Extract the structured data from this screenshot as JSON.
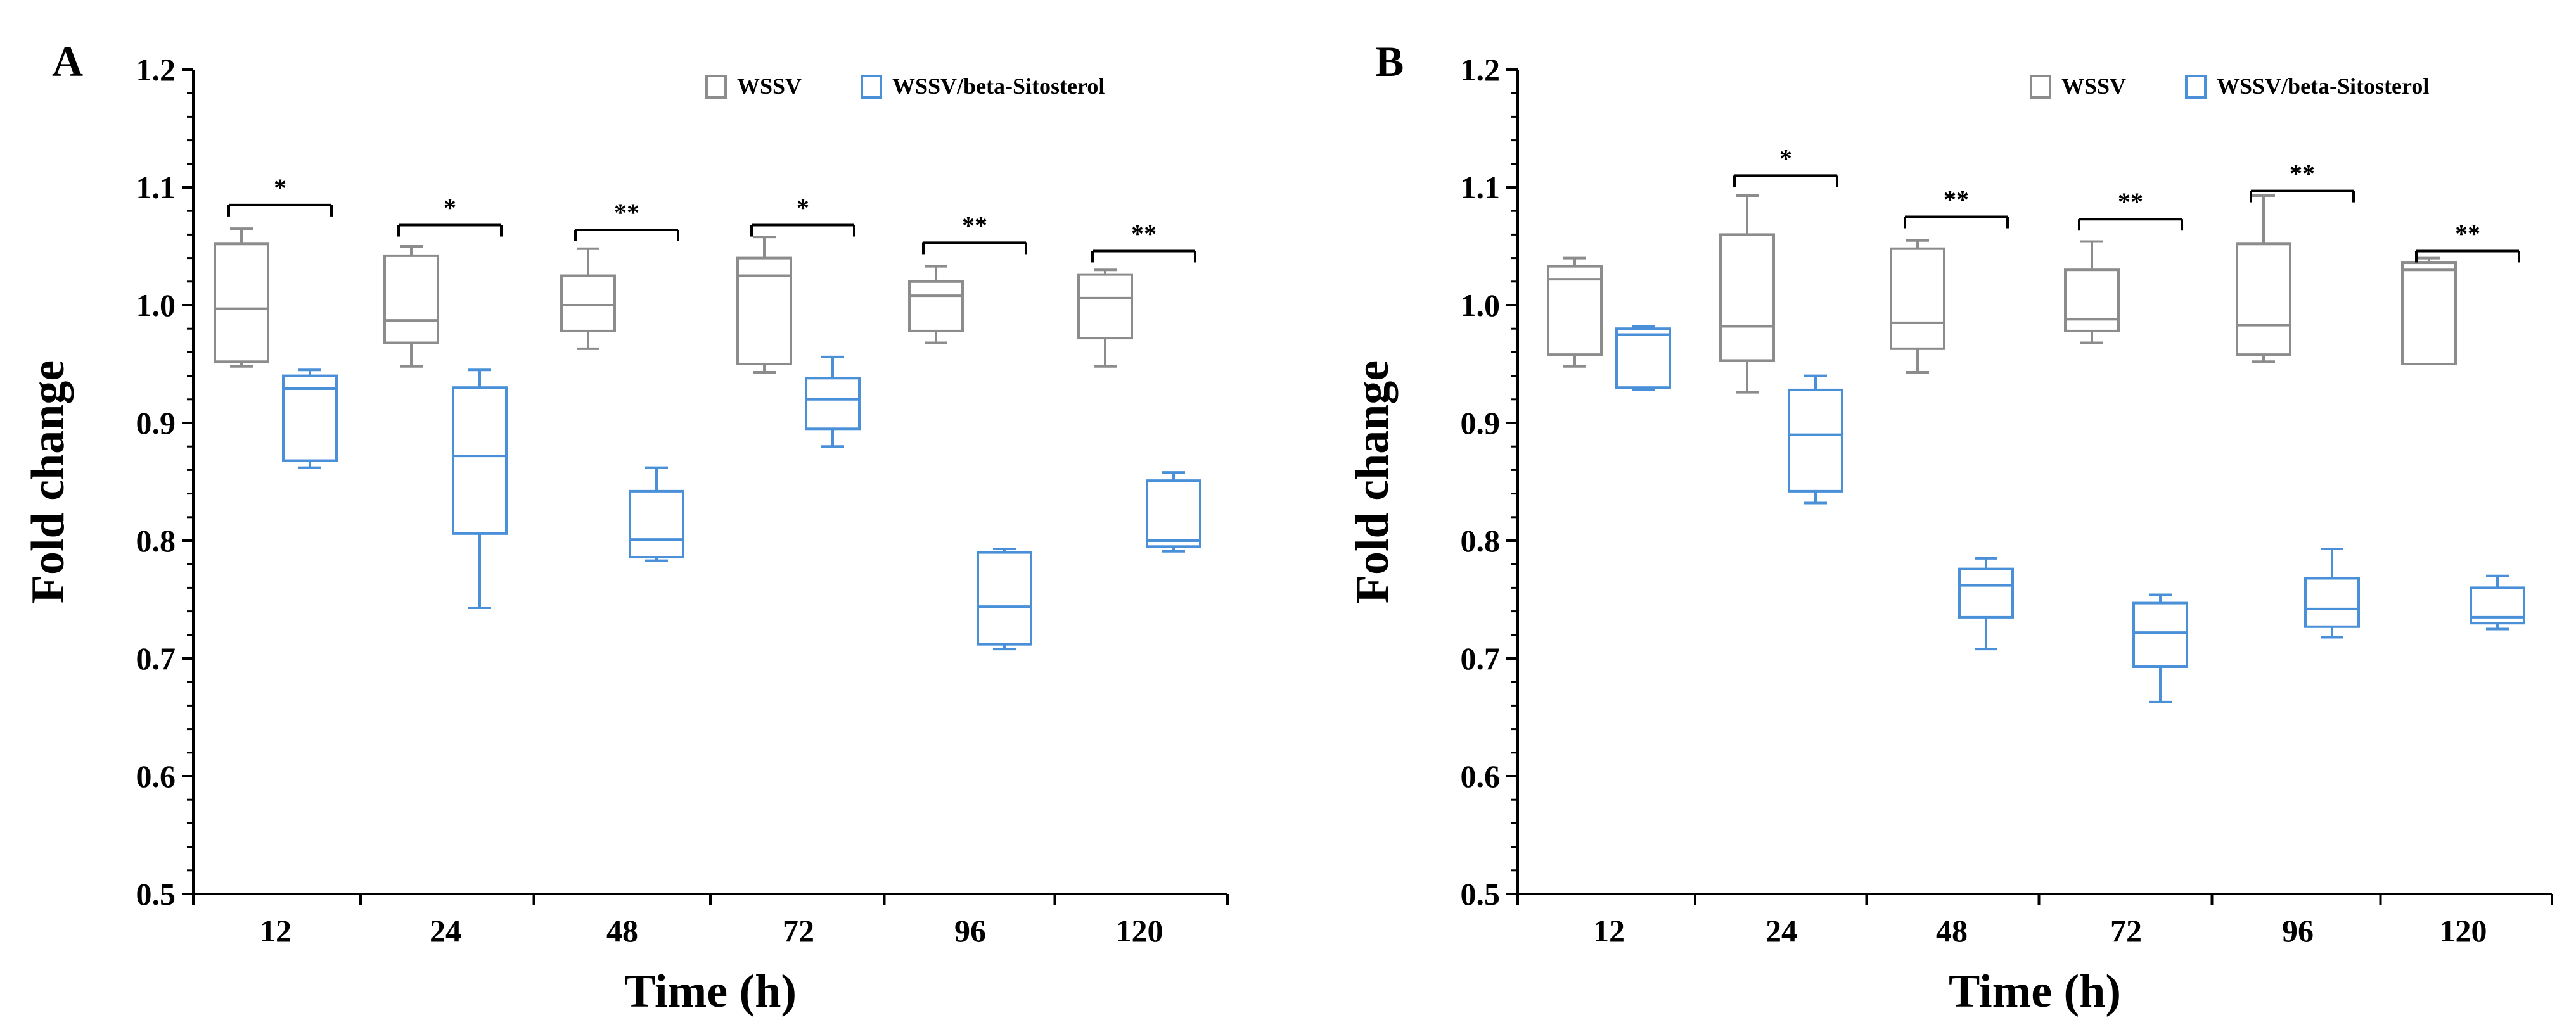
{
  "colors": {
    "WSSV": "#8c8c8c",
    "WSSV/beta-Sitosterol": "#4a90d9",
    "axis": "#000000"
  },
  "chart_data": [
    {
      "type": "box",
      "panel": "A",
      "xlabel": "Time (h)",
      "ylabel": "Fold change",
      "categories": [
        "12",
        "24",
        "48",
        "72",
        "96",
        "120"
      ],
      "ylim": [
        0.5,
        1.2
      ],
      "yticks": [
        "0.5",
        "0.6",
        "0.7",
        "0.8",
        "0.9",
        "1.0",
        "1.1",
        "1.2"
      ],
      "legend": {
        "placement": "top-right",
        "entries": [
          "WSSV",
          "WSSV/beta-Sitosterol"
        ]
      },
      "series": [
        {
          "name": "WSSV",
          "boxes": [
            {
              "min": 0.948,
              "q1": 0.952,
              "median": 0.997,
              "q3": 1.052,
              "max": 1.065
            },
            {
              "min": 0.948,
              "q1": 0.968,
              "median": 0.987,
              "q3": 1.042,
              "max": 1.05
            },
            {
              "min": 0.963,
              "q1": 0.978,
              "median": 1.0,
              "q3": 1.025,
              "max": 1.048
            },
            {
              "min": 0.943,
              "q1": 0.95,
              "median": 1.025,
              "q3": 1.04,
              "max": 1.058
            },
            {
              "min": 0.968,
              "q1": 0.978,
              "median": 1.008,
              "q3": 1.02,
              "max": 1.033
            },
            {
              "min": 0.948,
              "q1": 0.972,
              "median": 1.006,
              "q3": 1.026,
              "max": 1.03
            }
          ]
        },
        {
          "name": "WSSV/beta-Sitosterol",
          "boxes": [
            {
              "min": 0.862,
              "q1": 0.868,
              "median": 0.929,
              "q3": 0.94,
              "max": 0.945
            },
            {
              "min": 0.743,
              "q1": 0.806,
              "median": 0.872,
              "q3": 0.93,
              "max": 0.945
            },
            {
              "min": 0.783,
              "q1": 0.786,
              "median": 0.801,
              "q3": 0.842,
              "max": 0.862
            },
            {
              "min": 0.88,
              "q1": 0.895,
              "median": 0.92,
              "q3": 0.938,
              "max": 0.956
            },
            {
              "min": 0.708,
              "q1": 0.712,
              "median": 0.744,
              "q3": 0.79,
              "max": 0.793
            },
            {
              "min": 0.791,
              "q1": 0.795,
              "median": 0.8,
              "q3": 0.851,
              "max": 0.858
            }
          ]
        }
      ],
      "significance": [
        "*",
        "*",
        "**",
        "*",
        "**",
        "**"
      ],
      "sig_levels": [
        1.085,
        1.068,
        1.064,
        1.068,
        1.053,
        1.046
      ]
    },
    {
      "type": "box",
      "panel": "B",
      "xlabel": "Time (h)",
      "ylabel": "Fold change",
      "categories": [
        "12",
        "24",
        "48",
        "72",
        "96",
        "120"
      ],
      "ylim": [
        0.5,
        1.2
      ],
      "yticks": [
        "0.5",
        "0.6",
        "0.7",
        "0.8",
        "0.9",
        "1.0",
        "1.1",
        "1.2"
      ],
      "legend": {
        "placement": "top-right",
        "entries": [
          "WSSV",
          "WSSV/beta-Sitosterol"
        ]
      },
      "series": [
        {
          "name": "WSSV",
          "boxes": [
            {
              "min": 0.948,
              "q1": 0.958,
              "median": 1.022,
              "q3": 1.033,
              "max": 1.04
            },
            {
              "min": 0.926,
              "q1": 0.953,
              "median": 0.982,
              "q3": 1.06,
              "max": 1.093
            },
            {
              "min": 0.943,
              "q1": 0.963,
              "median": 0.985,
              "q3": 1.048,
              "max": 1.055
            },
            {
              "min": 0.968,
              "q1": 0.978,
              "median": 0.988,
              "q3": 1.03,
              "max": 1.054
            },
            {
              "min": 0.952,
              "q1": 0.958,
              "median": 0.983,
              "q3": 1.052,
              "max": 1.093
            },
            {
              "min": 0.95,
              "q1": 0.95,
              "median": 1.03,
              "q3": 1.036,
              "max": 1.04
            }
          ]
        },
        {
          "name": "WSSV/beta-Sitosterol",
          "boxes": [
            {
              "min": 0.928,
              "q1": 0.93,
              "median": 0.975,
              "q3": 0.98,
              "max": 0.982
            },
            {
              "min": 0.832,
              "q1": 0.842,
              "median": 0.89,
              "q3": 0.928,
              "max": 0.94
            },
            {
              "min": 0.708,
              "q1": 0.735,
              "median": 0.762,
              "q3": 0.776,
              "max": 0.785
            },
            {
              "min": 0.663,
              "q1": 0.693,
              "median": 0.722,
              "q3": 0.747,
              "max": 0.754
            },
            {
              "min": 0.718,
              "q1": 0.727,
              "median": 0.742,
              "q3": 0.768,
              "max": 0.793
            },
            {
              "min": 0.725,
              "q1": 0.73,
              "median": 0.735,
              "q3": 0.76,
              "max": 0.77
            }
          ]
        }
      ],
      "significance": [
        "",
        "*",
        "**",
        "**",
        "**",
        "**"
      ],
      "sig_levels": [
        null,
        1.11,
        1.075,
        1.073,
        1.097,
        1.046
      ]
    }
  ]
}
